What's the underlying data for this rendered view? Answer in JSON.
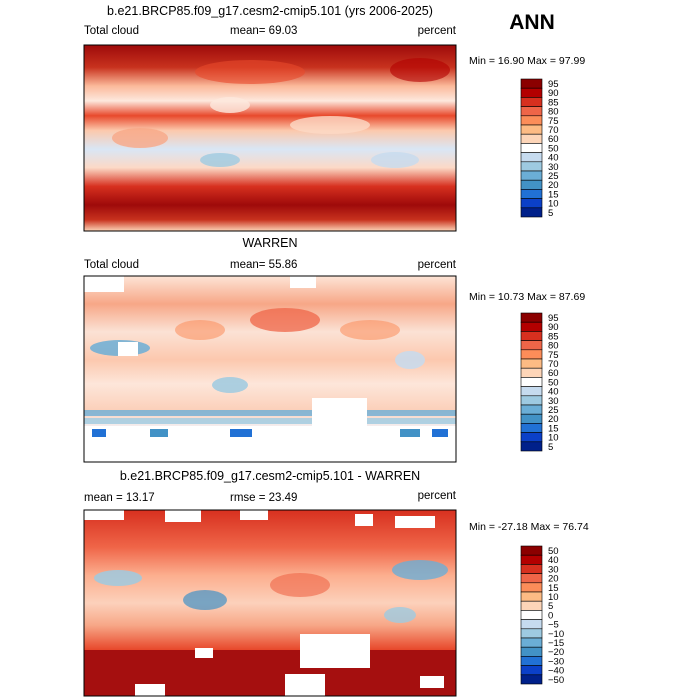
{
  "season_label": "ANN",
  "chart_data": [
    {
      "type": "heatmap",
      "title": "b.e21.BRCP85.f09_g17.cesm2-cmip5.101 (yrs 2006-2025)",
      "left_label": "Total cloud",
      "mid_label": "mean=  69.03",
      "right_label": "percent",
      "min_max": "Min =  16.90 Max =  97.99",
      "mean": 69.03,
      "min": 16.9,
      "max": 97.99,
      "colorbar_levels": [
        "95",
        "90",
        "85",
        "80",
        "75",
        "70",
        "60",
        "50",
        "40",
        "30",
        "25",
        "20",
        "15",
        "10",
        "5"
      ]
    },
    {
      "type": "heatmap",
      "title": "WARREN",
      "left_label": "Total cloud",
      "mid_label": "mean=  55.86",
      "right_label": "percent",
      "min_max": "Min =  10.73 Max =  87.69",
      "mean": 55.86,
      "min": 10.73,
      "max": 87.69,
      "colorbar_levels": [
        "95",
        "90",
        "85",
        "80",
        "75",
        "70",
        "60",
        "50",
        "40",
        "30",
        "25",
        "20",
        "15",
        "10",
        "5"
      ]
    },
    {
      "type": "heatmap",
      "title": "b.e21.BRCP85.f09_g17.cesm2-cmip5.101 - WARREN",
      "left_label": "mean =  13.17",
      "mid_label": "rmse =  23.49",
      "right_label": "percent",
      "min_max": "Min = -27.18 Max =  76.74",
      "mean": 13.17,
      "rmse": 23.49,
      "min": -27.18,
      "max": 76.74,
      "colorbar_levels": [
        "50",
        "40",
        "30",
        "20",
        "15",
        "10",
        "5",
        "0",
        "−5",
        "−10",
        "−15",
        "−20",
        "−30",
        "−40",
        "−50"
      ]
    }
  ],
  "colors": {
    "scale": [
      "#8b0000",
      "#b30000",
      "#d7301f",
      "#ef6548",
      "#fc8d59",
      "#fdbb84",
      "#fdd5b8",
      "#ffffff",
      "#c6dbef",
      "#9ecae1",
      "#6baed6",
      "#4292c6",
      "#2171d5",
      "#0b40c8",
      "#00208a"
    ]
  }
}
